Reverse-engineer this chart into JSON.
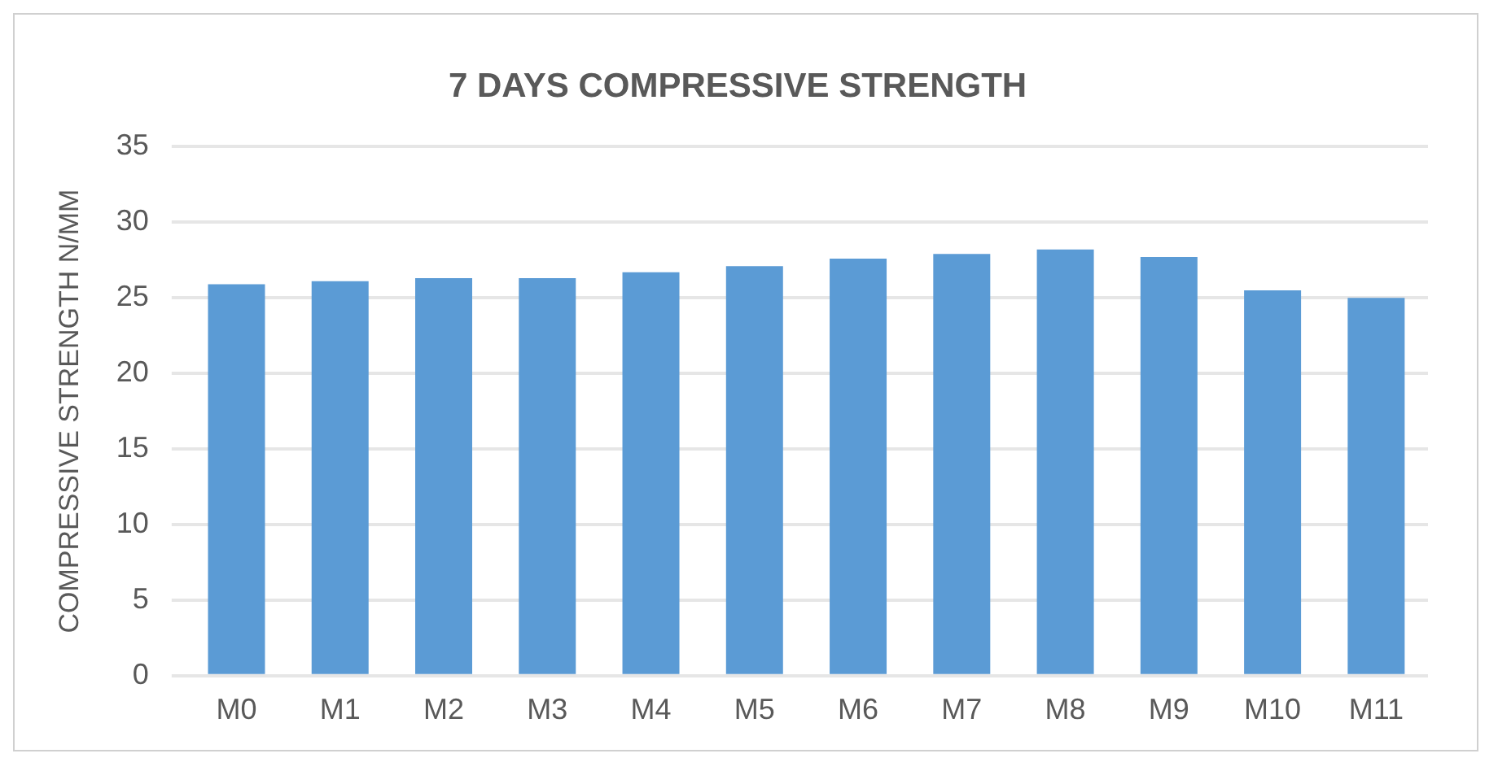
{
  "chart_data": {
    "type": "bar",
    "title": "7 DAYS COMPRESSIVE STRENGTH",
    "ylabel": "COMPRESSIVE STRENGTH N/MM",
    "categories": [
      "M0",
      "M1",
      "M2",
      "M3",
      "M4",
      "M5",
      "M6",
      "M7",
      "M8",
      "M9",
      "M10",
      "M11"
    ],
    "values": [
      25.9,
      26.1,
      26.3,
      26.3,
      26.7,
      27.1,
      27.6,
      27.9,
      28.2,
      27.7,
      25.5,
      25.0
    ],
    "color": "#5b9bd5",
    "ylim": [
      0,
      35
    ],
    "yticks": [
      0,
      5,
      10,
      15,
      20,
      25,
      30,
      35
    ],
    "grid": "y",
    "legend": false
  }
}
